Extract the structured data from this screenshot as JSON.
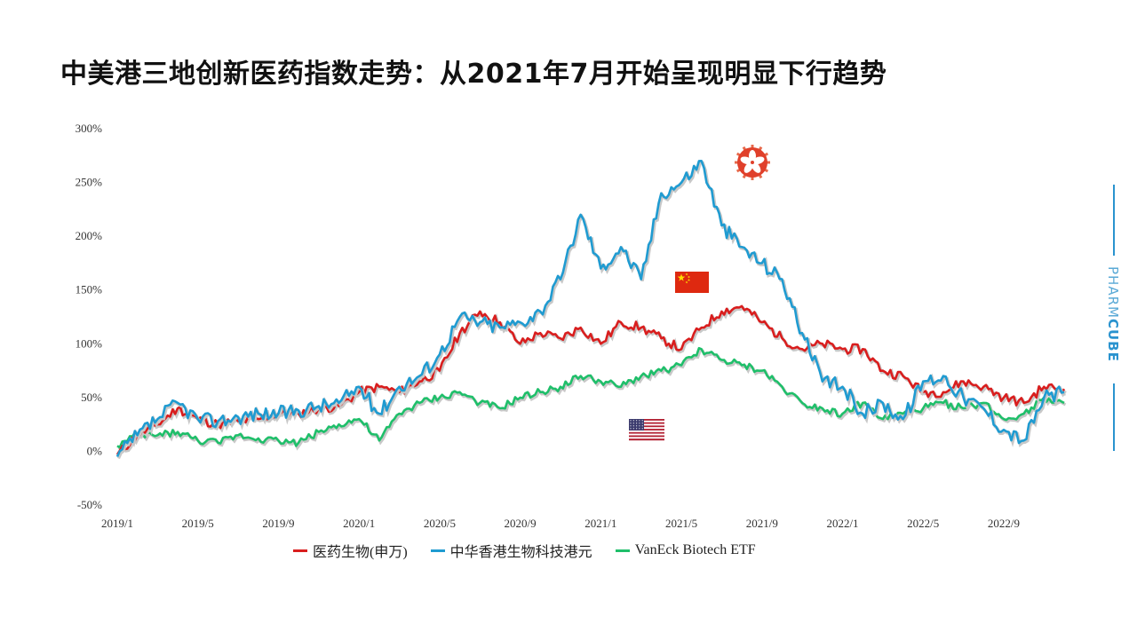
{
  "page": {
    "title": "中美港三地创新医药指数走势：从2021年7月开始呈现明显下行趋势",
    "brand_light": "PHARM",
    "brand_bold": "CUBE"
  },
  "colors": {
    "red": "#d91e1e",
    "blue": "#1f9bd1",
    "green": "#1fbf6a",
    "brand": "#2a93cf"
  },
  "flags": [
    {
      "name": "hong-kong-flag-icon",
      "x": "2021/8"
    },
    {
      "name": "china-flag-icon",
      "x": "2021/6"
    },
    {
      "name": "usa-flag-icon",
      "x": "2021/3"
    }
  ],
  "chart_data": {
    "type": "line",
    "title": "",
    "xlabel": "",
    "ylabel": "",
    "ylim": [
      -50,
      300
    ],
    "y_ticks": [
      "-50%",
      "0%",
      "50%",
      "100%",
      "150%",
      "200%",
      "250%",
      "300%"
    ],
    "y_tick_values": [
      -50,
      0,
      50,
      100,
      150,
      200,
      250,
      300
    ],
    "x_ticks": [
      "2019/1",
      "2019/5",
      "2019/9",
      "2020/1",
      "2020/5",
      "2020/9",
      "2021/1",
      "2021/5",
      "2021/9",
      "2022/1",
      "2022/5",
      "2022/9"
    ],
    "x_range_months": [
      0,
      47
    ],
    "legend": [
      "医药生物(申万)",
      "中华香港生物科技港元",
      "VanEck Biotech ETF"
    ],
    "series": [
      {
        "name": "医药生物(申万)",
        "color": "#d91e1e",
        "x": [
          0,
          1,
          2,
          3,
          4,
          5,
          6,
          7,
          8,
          9,
          10,
          11,
          12,
          13,
          14,
          15,
          16,
          17,
          18,
          19,
          20,
          21,
          22,
          23,
          24,
          25,
          26,
          27,
          28,
          29,
          30,
          31,
          32,
          33,
          34,
          35,
          36,
          37,
          38,
          39,
          40,
          41,
          42,
          43,
          44,
          45,
          46,
          47
        ],
        "values": [
          -3,
          15,
          25,
          40,
          30,
          25,
          28,
          30,
          35,
          35,
          40,
          42,
          55,
          60,
          55,
          65,
          75,
          110,
          130,
          120,
          100,
          110,
          105,
          115,
          100,
          120,
          115,
          105,
          95,
          115,
          130,
          135,
          120,
          105,
          95,
          100,
          95,
          95,
          75,
          70,
          55,
          55,
          65,
          60,
          50,
          45,
          60,
          58
        ]
      },
      {
        "name": "中华香港生物科技港元",
        "color": "#1f9bd1",
        "x": [
          0,
          1,
          2,
          3,
          4,
          5,
          6,
          7,
          8,
          9,
          10,
          11,
          12,
          13,
          14,
          15,
          16,
          17,
          18,
          19,
          20,
          21,
          22,
          23,
          24,
          25,
          26,
          27,
          28,
          29,
          30,
          31,
          32,
          33,
          34,
          35,
          36,
          37,
          38,
          39,
          40,
          41,
          42,
          43,
          44,
          45,
          46,
          47
        ],
        "values": [
          -5,
          15,
          30,
          45,
          30,
          28,
          32,
          35,
          35,
          38,
          42,
          45,
          60,
          35,
          60,
          70,
          90,
          125,
          120,
          115,
          120,
          130,
          160,
          220,
          170,
          190,
          160,
          240,
          250,
          270,
          210,
          190,
          175,
          160,
          110,
          65,
          60,
          35,
          45,
          30,
          65,
          70,
          50,
          40,
          20,
          10,
          50,
          55
        ]
      },
      {
        "name": "VanEck Biotech ETF",
        "color": "#1fbf6a",
        "x": [
          0,
          1,
          2,
          3,
          4,
          5,
          6,
          7,
          8,
          9,
          10,
          11,
          12,
          13,
          14,
          15,
          16,
          17,
          18,
          19,
          20,
          21,
          22,
          23,
          24,
          25,
          26,
          27,
          28,
          29,
          30,
          31,
          32,
          33,
          34,
          35,
          36,
          37,
          38,
          39,
          40,
          41,
          42,
          43,
          44,
          45,
          46,
          47
        ],
        "values": [
          5,
          15,
          15,
          18,
          10,
          8,
          15,
          12,
          10,
          8,
          18,
          25,
          30,
          10,
          35,
          45,
          50,
          55,
          45,
          40,
          50,
          55,
          60,
          70,
          65,
          60,
          70,
          75,
          80,
          95,
          85,
          80,
          75,
          60,
          45,
          40,
          35,
          45,
          30,
          35,
          40,
          45,
          40,
          45,
          30,
          35,
          50,
          45
        ]
      }
    ]
  }
}
